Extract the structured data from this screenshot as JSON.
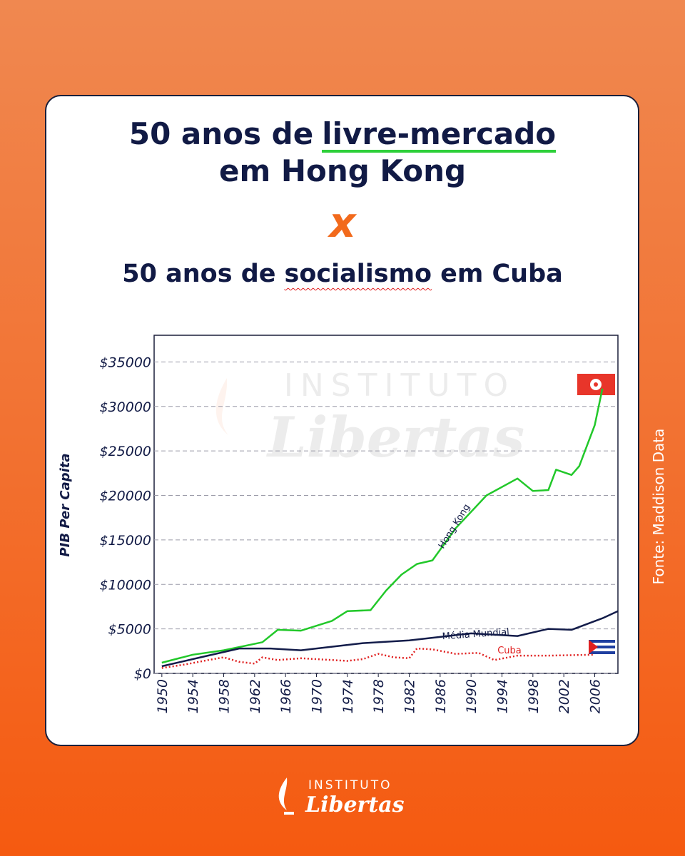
{
  "header": {
    "title_1_pre": "50 anos de",
    "title_1_highlight": "livre-mercado",
    "title_1_post": "em Hong Kong",
    "separator": "x",
    "title_2_pre": "50 anos de",
    "title_2_highlight": "socialismo",
    "title_2_post": "em Cuba"
  },
  "chart_data": {
    "type": "line",
    "y_label": "PIB Per Capita",
    "grid": true,
    "xlim": [
      1949,
      2009
    ],
    "xticks": [
      1950,
      1954,
      1958,
      1962,
      1966,
      1970,
      1974,
      1978,
      1982,
      1986,
      1990,
      1994,
      1998,
      2002,
      2006
    ],
    "ylim": [
      0,
      38000
    ],
    "yticks": [
      {
        "value": 0,
        "label": "$0"
      },
      {
        "value": 5000,
        "label": "$5000"
      },
      {
        "value": 10000,
        "label": "$10000"
      },
      {
        "value": 15000,
        "label": "$15000"
      },
      {
        "value": 20000,
        "label": "$20000"
      },
      {
        "value": 25000,
        "label": "$25000"
      },
      {
        "value": 30000,
        "label": "$30000"
      },
      {
        "value": 35000,
        "label": "$35000"
      }
    ],
    "series": [
      {
        "name": "Hong Kong",
        "color": "#22c82a",
        "line_style": "solid",
        "x": [
          1950,
          1954,
          1958,
          1963,
          1965,
          1968,
          1972,
          1974,
          1977,
          1979,
          1981,
          1983,
          1985,
          1988,
          1992,
          1996,
          1998,
          2000,
          2001,
          2003,
          2004,
          2006,
          2007
        ],
        "values": [
          1200,
          2100,
          2600,
          3500,
          4900,
          4800,
          5900,
          7000,
          7100,
          9300,
          11100,
          12300,
          12700,
          16300,
          20000,
          21900,
          20500,
          20600,
          22900,
          22300,
          23300,
          27900,
          32000
        ]
      },
      {
        "name": "Média Mundial",
        "color": "#131c4a",
        "line_style": "solid",
        "x": [
          1950,
          1955,
          1960,
          1964,
          1968,
          1972,
          1976,
          1982,
          1986,
          1990,
          1996,
          2000,
          2003,
          2007,
          2009
        ],
        "values": [
          800,
          1800,
          2800,
          2800,
          2600,
          3000,
          3400,
          3700,
          4100,
          4500,
          4200,
          5000,
          4900,
          6200,
          7000
        ]
      },
      {
        "name": "Cuba",
        "color": "#e02020",
        "line_style": "dotted",
        "x": [
          1950,
          1953,
          1956,
          1958,
          1960,
          1962,
          1963,
          1965,
          1968,
          1974,
          1976,
          1978,
          1980,
          1982,
          1983,
          1985,
          1988,
          1991,
          1993,
          1996,
          2000,
          2006
        ],
        "values": [
          600,
          1000,
          1500,
          1800,
          1300,
          1100,
          1800,
          1500,
          1700,
          1400,
          1600,
          2200,
          1800,
          1700,
          2800,
          2700,
          2200,
          2300,
          1500,
          2000,
          2000,
          2100
        ]
      }
    ]
  },
  "source": "Fonte: Maddison Data",
  "brand": {
    "top": "INSTITUTO",
    "bottom": "Libertas"
  }
}
